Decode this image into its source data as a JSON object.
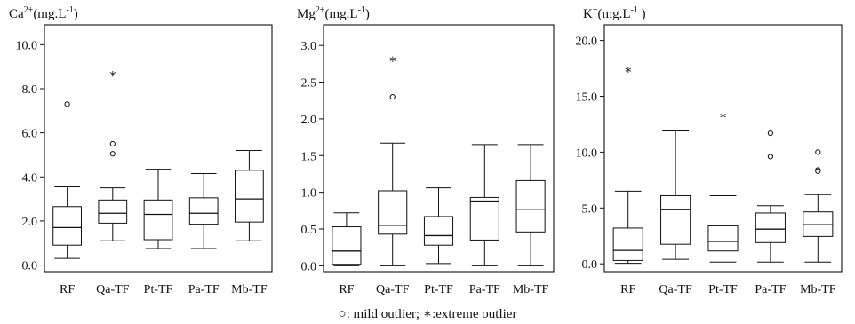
{
  "legend": {
    "mild_symbol": "○",
    "mild_label": ": mild outlier;",
    "extreme_symbol": "∗",
    "extreme_label": ":extreme outlier"
  },
  "chart_data": [
    {
      "type": "box",
      "title": "Ca",
      "title_sup": "2+",
      "title_unit": "(mg.L",
      "title_unit_sup": "-1",
      "title_close": ")",
      "categories": [
        "RF",
        "Qa-TF",
        "Pt-TF",
        "Pa-TF",
        "Mb-TF"
      ],
      "ylim": [
        -0.3,
        10.9
      ],
      "yticks": [
        0.0,
        2.0,
        4.0,
        6.0,
        8.0,
        10.0
      ],
      "ytick_labels": [
        "0.0",
        "2.0",
        "4.0",
        "6.0",
        "8.0",
        "10.0"
      ],
      "boxes": [
        {
          "min": 0.3,
          "q1": 0.9,
          "median": 1.7,
          "q3": 2.65,
          "max": 3.55,
          "mild": [
            7.3
          ],
          "extreme": []
        },
        {
          "min": 1.1,
          "q1": 1.9,
          "median": 2.35,
          "q3": 2.95,
          "max": 3.5,
          "mild": [
            5.5,
            5.05
          ],
          "extreme": [
            8.75
          ]
        },
        {
          "min": 0.75,
          "q1": 1.15,
          "median": 2.3,
          "q3": 2.95,
          "max": 4.35,
          "mild": [],
          "extreme": []
        },
        {
          "min": 0.75,
          "q1": 1.85,
          "median": 2.35,
          "q3": 3.05,
          "max": 4.15,
          "mild": [],
          "extreme": []
        },
        {
          "min": 1.1,
          "q1": 1.95,
          "median": 3.0,
          "q3": 4.3,
          "max": 5.2,
          "mild": [],
          "extreme": []
        }
      ]
    },
    {
      "type": "box",
      "title": "Mg",
      "title_sup": "2+",
      "title_unit": "(mg.L",
      "title_unit_sup": "-1",
      "title_close": ")",
      "categories": [
        "RF",
        "Qa-TF",
        "Pt-TF",
        "Pa-TF",
        "Mb-TF"
      ],
      "ylim": [
        -0.08,
        3.28
      ],
      "yticks": [
        0.0,
        0.5,
        1.0,
        1.5,
        2.0,
        2.5,
        3.0
      ],
      "ytick_labels": [
        "0.0",
        "0.5",
        "1.0",
        "1.5",
        "2.0",
        "2.5",
        "3.0"
      ],
      "boxes": [
        {
          "min": 0.0,
          "q1": 0.02,
          "median": 0.2,
          "q3": 0.53,
          "max": 0.72,
          "mild": [],
          "extreme": []
        },
        {
          "min": 0.0,
          "q1": 0.43,
          "median": 0.55,
          "q3": 1.02,
          "max": 1.67,
          "mild": [
            2.3
          ],
          "extreme": [
            2.83
          ]
        },
        {
          "min": 0.03,
          "q1": 0.28,
          "median": 0.41,
          "q3": 0.67,
          "max": 1.06,
          "mild": [],
          "extreme": []
        },
        {
          "min": 0.0,
          "q1": 0.35,
          "median": 0.88,
          "q3": 0.93,
          "max": 1.65,
          "mild": [],
          "extreme": []
        },
        {
          "min": 0.0,
          "q1": 0.46,
          "median": 0.77,
          "q3": 1.16,
          "max": 1.65,
          "mild": [],
          "extreme": []
        }
      ]
    },
    {
      "type": "box",
      "title": "K",
      "title_sup": "+",
      "title_unit": "(mg.L",
      "title_unit_sup": "-1",
      "title_close": " )",
      "categories": [
        "RF",
        "Qa-TF",
        "Pt-TF",
        "Pa-TF",
        "Mb-TF"
      ],
      "ylim": [
        -0.7,
        21.4
      ],
      "yticks": [
        0.0,
        5.0,
        10.0,
        15.0,
        20.0
      ],
      "ytick_labels": [
        "0.0",
        "5.0",
        "10.0",
        "15.0",
        "20.0"
      ],
      "boxes": [
        {
          "min": 0.05,
          "q1": 0.3,
          "median": 1.2,
          "q3": 3.2,
          "max": 6.5,
          "mild": [],
          "extreme": [
            17.5
          ]
        },
        {
          "min": 0.4,
          "q1": 1.75,
          "median": 4.85,
          "q3": 6.1,
          "max": 11.9,
          "mild": [],
          "extreme": []
        },
        {
          "min": 0.15,
          "q1": 1.15,
          "median": 2.0,
          "q3": 3.4,
          "max": 6.1,
          "mild": [],
          "extreme": [
            13.4
          ]
        },
        {
          "min": 0.15,
          "q1": 1.9,
          "median": 3.1,
          "q3": 4.55,
          "max": 5.2,
          "mild": [
            11.7,
            9.6
          ],
          "extreme": []
        },
        {
          "min": 0.15,
          "q1": 2.45,
          "median": 3.5,
          "q3": 4.65,
          "max": 6.2,
          "mild": [
            10.0,
            8.4,
            8.3
          ],
          "extreme": []
        }
      ]
    }
  ]
}
